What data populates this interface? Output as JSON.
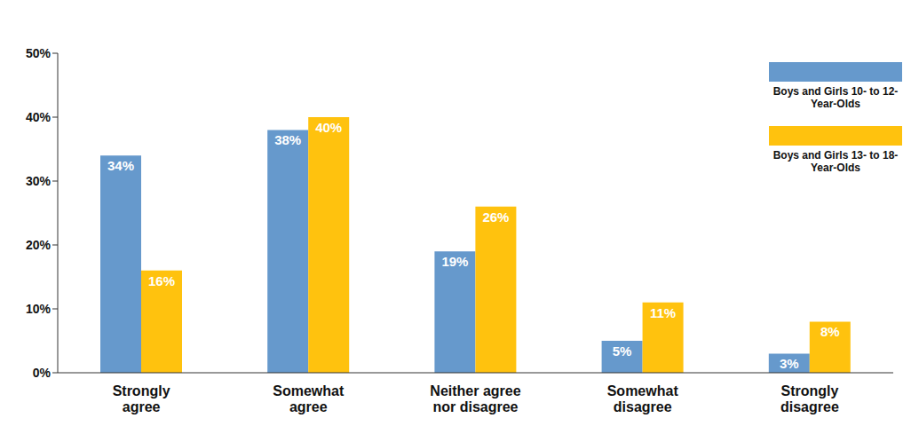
{
  "chart_data": {
    "type": "bar",
    "categories": [
      "Strongly agree",
      "Somewhat agree",
      "Neither agree nor disagree",
      "Somewhat disagree",
      "Strongly disagree"
    ],
    "series": [
      {
        "name": "Boys and Girls 10- to 12-Year-Olds",
        "color": "#6699cc",
        "values": [
          34,
          38,
          19,
          5,
          3
        ],
        "value_labels": [
          "34%",
          "38%",
          "19%",
          "5%",
          "3%"
        ]
      },
      {
        "name": "Boys and Girls 13- to 18-Year-Olds",
        "color": "#ffc20e",
        "values": [
          16,
          40,
          26,
          11,
          8
        ],
        "value_labels": [
          "16%",
          "40%",
          "26%",
          "11%",
          "8%"
        ]
      }
    ],
    "ylim": [
      0,
      50
    ],
    "yticks": [
      {
        "value": 0,
        "label": "0%"
      },
      {
        "value": 10,
        "label": "10%"
      },
      {
        "value": 20,
        "label": "20%"
      },
      {
        "value": 30,
        "label": "30%"
      },
      {
        "value": 40,
        "label": "40%"
      },
      {
        "value": 50,
        "label": "50%"
      }
    ],
    "grid": false,
    "data_labels": true,
    "legend": "upper right"
  }
}
